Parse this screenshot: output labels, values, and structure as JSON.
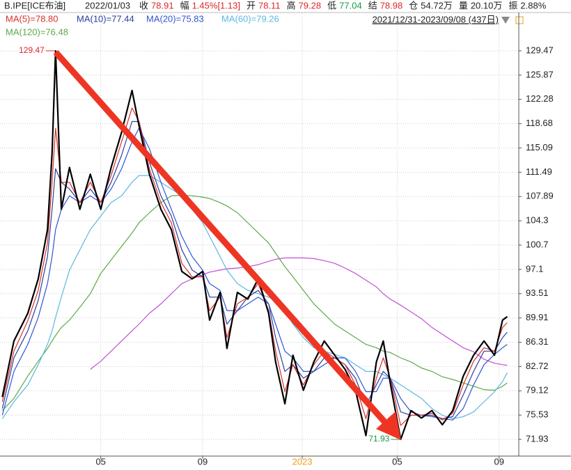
{
  "header": {
    "symbol": "B.IPE[ICE布油]",
    "date": "2022/01/03",
    "range": "2021/12/31-2023/09/08 (437日)",
    "fields": [
      {
        "label": "收",
        "value": "78.91",
        "color": "#e0252b"
      },
      {
        "label": "幅",
        "value": "1.45%[1.13]",
        "color": "#e0252b"
      },
      {
        "label": "开",
        "value": "78.11",
        "color": "#e0252b"
      },
      {
        "label": "高",
        "value": "79.28",
        "color": "#e0252b"
      },
      {
        "label": "低",
        "value": "77.04",
        "color": "#1a9a4a"
      },
      {
        "label": "结",
        "value": "78.98",
        "color": "#e0252b"
      },
      {
        "label": "仓",
        "value": "54.72万",
        "color": "#222222"
      },
      {
        "label": "量",
        "value": "20.10万",
        "color": "#222222"
      },
      {
        "label": "振",
        "value": "2.88%",
        "color": "#222222"
      }
    ]
  },
  "chart_data": {
    "type": "line",
    "x": [
      0,
      10,
      22,
      31,
      39,
      43,
      46,
      51,
      58,
      67,
      76,
      85,
      94,
      103,
      112,
      118,
      127,
      137,
      146,
      155,
      164,
      173,
      179,
      188,
      194,
      203,
      212,
      221,
      230,
      236,
      244,
      251,
      260,
      269,
      278,
      287,
      296,
      305,
      314,
      323,
      329,
      335,
      344,
      353,
      362,
      371,
      380,
      389,
      398,
      407,
      416,
      425,
      432,
      436
    ],
    "price": {
      "color": "#000000",
      "values": [
        78.2,
        86.5,
        90.6,
        95.7,
        103,
        114.3,
        129.47,
        106,
        112.2,
        106,
        111.2,
        106,
        112.2,
        117.4,
        123.6,
        118.4,
        111.2,
        106,
        103,
        96.8,
        95.7,
        96.8,
        89.6,
        93.7,
        85.4,
        93.7,
        92.7,
        95.7,
        90.6,
        83.4,
        77.2,
        84.4,
        79.2,
        83.4,
        86.5,
        84.4,
        82.3,
        79.2,
        72.5,
        83.4,
        86.5,
        80.3,
        71.93,
        76.2,
        75.1,
        76.2,
        74.1,
        76.2,
        81.3,
        84.4,
        86.5,
        84.4,
        89.6,
        90.1
      ]
    },
    "series": [
      {
        "name": "MA(5)=78.80",
        "color": "#d8312c",
        "values": [
          77.5,
          85,
          89.5,
          94,
          101,
          110,
          118,
          110,
          110,
          107,
          110,
          107,
          111,
          116,
          121,
          119,
          112,
          107,
          104,
          98,
          96,
          96,
          91,
          93,
          87,
          92,
          93,
          95,
          91,
          85,
          79,
          83,
          80,
          83,
          85,
          84,
          83,
          80,
          75,
          81,
          84,
          81,
          74,
          75.5,
          75.5,
          75.8,
          74.8,
          75.8,
          80,
          83.5,
          85.5,
          85,
          88.5,
          89.2
        ]
      },
      {
        "name": "MA(10)=77.44",
        "color": "#2b3f9e",
        "values": [
          76.5,
          84,
          88,
          92.5,
          99,
          106,
          112,
          110,
          109,
          107,
          109,
          107,
          110,
          114,
          119,
          119,
          113,
          108,
          105,
          100,
          97,
          96,
          93,
          93,
          89,
          91,
          93,
          94,
          92,
          87,
          82,
          83,
          81,
          82,
          84,
          84,
          83,
          81,
          77,
          80,
          82,
          81,
          76,
          75.5,
          75.5,
          75.5,
          75,
          75.3,
          78.5,
          82,
          85,
          85,
          87,
          87.8
        ]
      },
      {
        "name": "MA(20)=75.83",
        "color": "#2f55d4",
        "values": [
          75.5,
          82,
          86,
          90,
          95,
          99,
          103,
          106,
          108,
          107,
          108,
          107,
          109,
          112,
          116,
          118,
          115,
          110,
          106,
          102,
          99,
          97,
          95,
          94,
          91,
          91,
          92,
          93,
          92,
          89,
          85,
          84,
          82,
          82,
          83,
          84,
          84,
          82,
          79,
          79,
          81,
          81,
          78,
          76,
          75.5,
          75.3,
          75,
          74.8,
          76.5,
          80,
          83,
          84.5,
          85.5,
          86
        ]
      },
      {
        "name": "MA(60)=79.26",
        "color": "#5cb8e0",
        "values": [
          75,
          77.5,
          80,
          83,
          86,
          88,
          90,
          93,
          97,
          100,
          103,
          105,
          107,
          108,
          110,
          111,
          111,
          110,
          109,
          108,
          106,
          104,
          102,
          99,
          97,
          95,
          94,
          93.5,
          93,
          92.5,
          91,
          89,
          87,
          85.5,
          85,
          84.5,
          84,
          83,
          82,
          82,
          81.5,
          81,
          80,
          79,
          78,
          76.5,
          75.5,
          75,
          75.3,
          76,
          77.5,
          79,
          80.5,
          81.8
        ]
      },
      {
        "name": "MA(120)=76.48",
        "color": "#5aaa48",
        "values": [
          76.2,
          78,
          81.3,
          83.5,
          85.4,
          86.5,
          87.3,
          88.5,
          89.6,
          91.5,
          93.5,
          96.5,
          98.5,
          100.5,
          102.5,
          104,
          105.5,
          107,
          108,
          108.1,
          108,
          107.8,
          107.6,
          107,
          106.5,
          105.5,
          104,
          102.5,
          101,
          99.5,
          97.5,
          96,
          94,
          92,
          90.5,
          89,
          88,
          87,
          86,
          85.5,
          85,
          84.8,
          84,
          83.4,
          82.5,
          82,
          81.2,
          80.8,
          80.3,
          79.8,
          79.3,
          79.2,
          79.8,
          80.3
        ]
      },
      {
        "color": "#c24fd6",
        "values": [
          null,
          null,
          null,
          null,
          null,
          null,
          null,
          null,
          null,
          null,
          82.3,
          83.5,
          85,
          86.5,
          88,
          89,
          90.6,
          92,
          93.5,
          95,
          95.7,
          96.3,
          96.7,
          97,
          97.2,
          97.3,
          97.5,
          97.8,
          98.3,
          98.6,
          98.8,
          98.8,
          98.8,
          98.7,
          98.4,
          98,
          97.3,
          96.5,
          95.5,
          94.5,
          93.5,
          92.7,
          91.8,
          90.8,
          89.8,
          88.5,
          87.5,
          86.5,
          85.5,
          84.9,
          83.8,
          83.2,
          83,
          82.9
        ]
      }
    ],
    "xlim": [
      -2,
      446
    ],
    "ylim": [
      69.46,
      132.87
    ],
    "xticks": [
      {
        "value": 85,
        "label": "05"
      },
      {
        "value": 173,
        "label": "09"
      },
      {
        "value": 259,
        "label": "2023"
      },
      {
        "value": 341,
        "label": "05"
      },
      {
        "value": 429,
        "label": "09"
      }
    ],
    "yticks": [
      71.93,
      75.53,
      79.12,
      82.72,
      86.31,
      89.91,
      93.51,
      97.1,
      100.7,
      104.3,
      107.89,
      111.49,
      115.09,
      118.68,
      122.28,
      125.87,
      129.47
    ],
    "grid": true,
    "annotations": [
      {
        "text": "129.47",
        "x": 46,
        "y": 129.47,
        "color": "#e0252b"
      },
      {
        "text": "71.93",
        "x": 344,
        "y": 71.93,
        "color": "#1a9a4a"
      }
    ]
  }
}
